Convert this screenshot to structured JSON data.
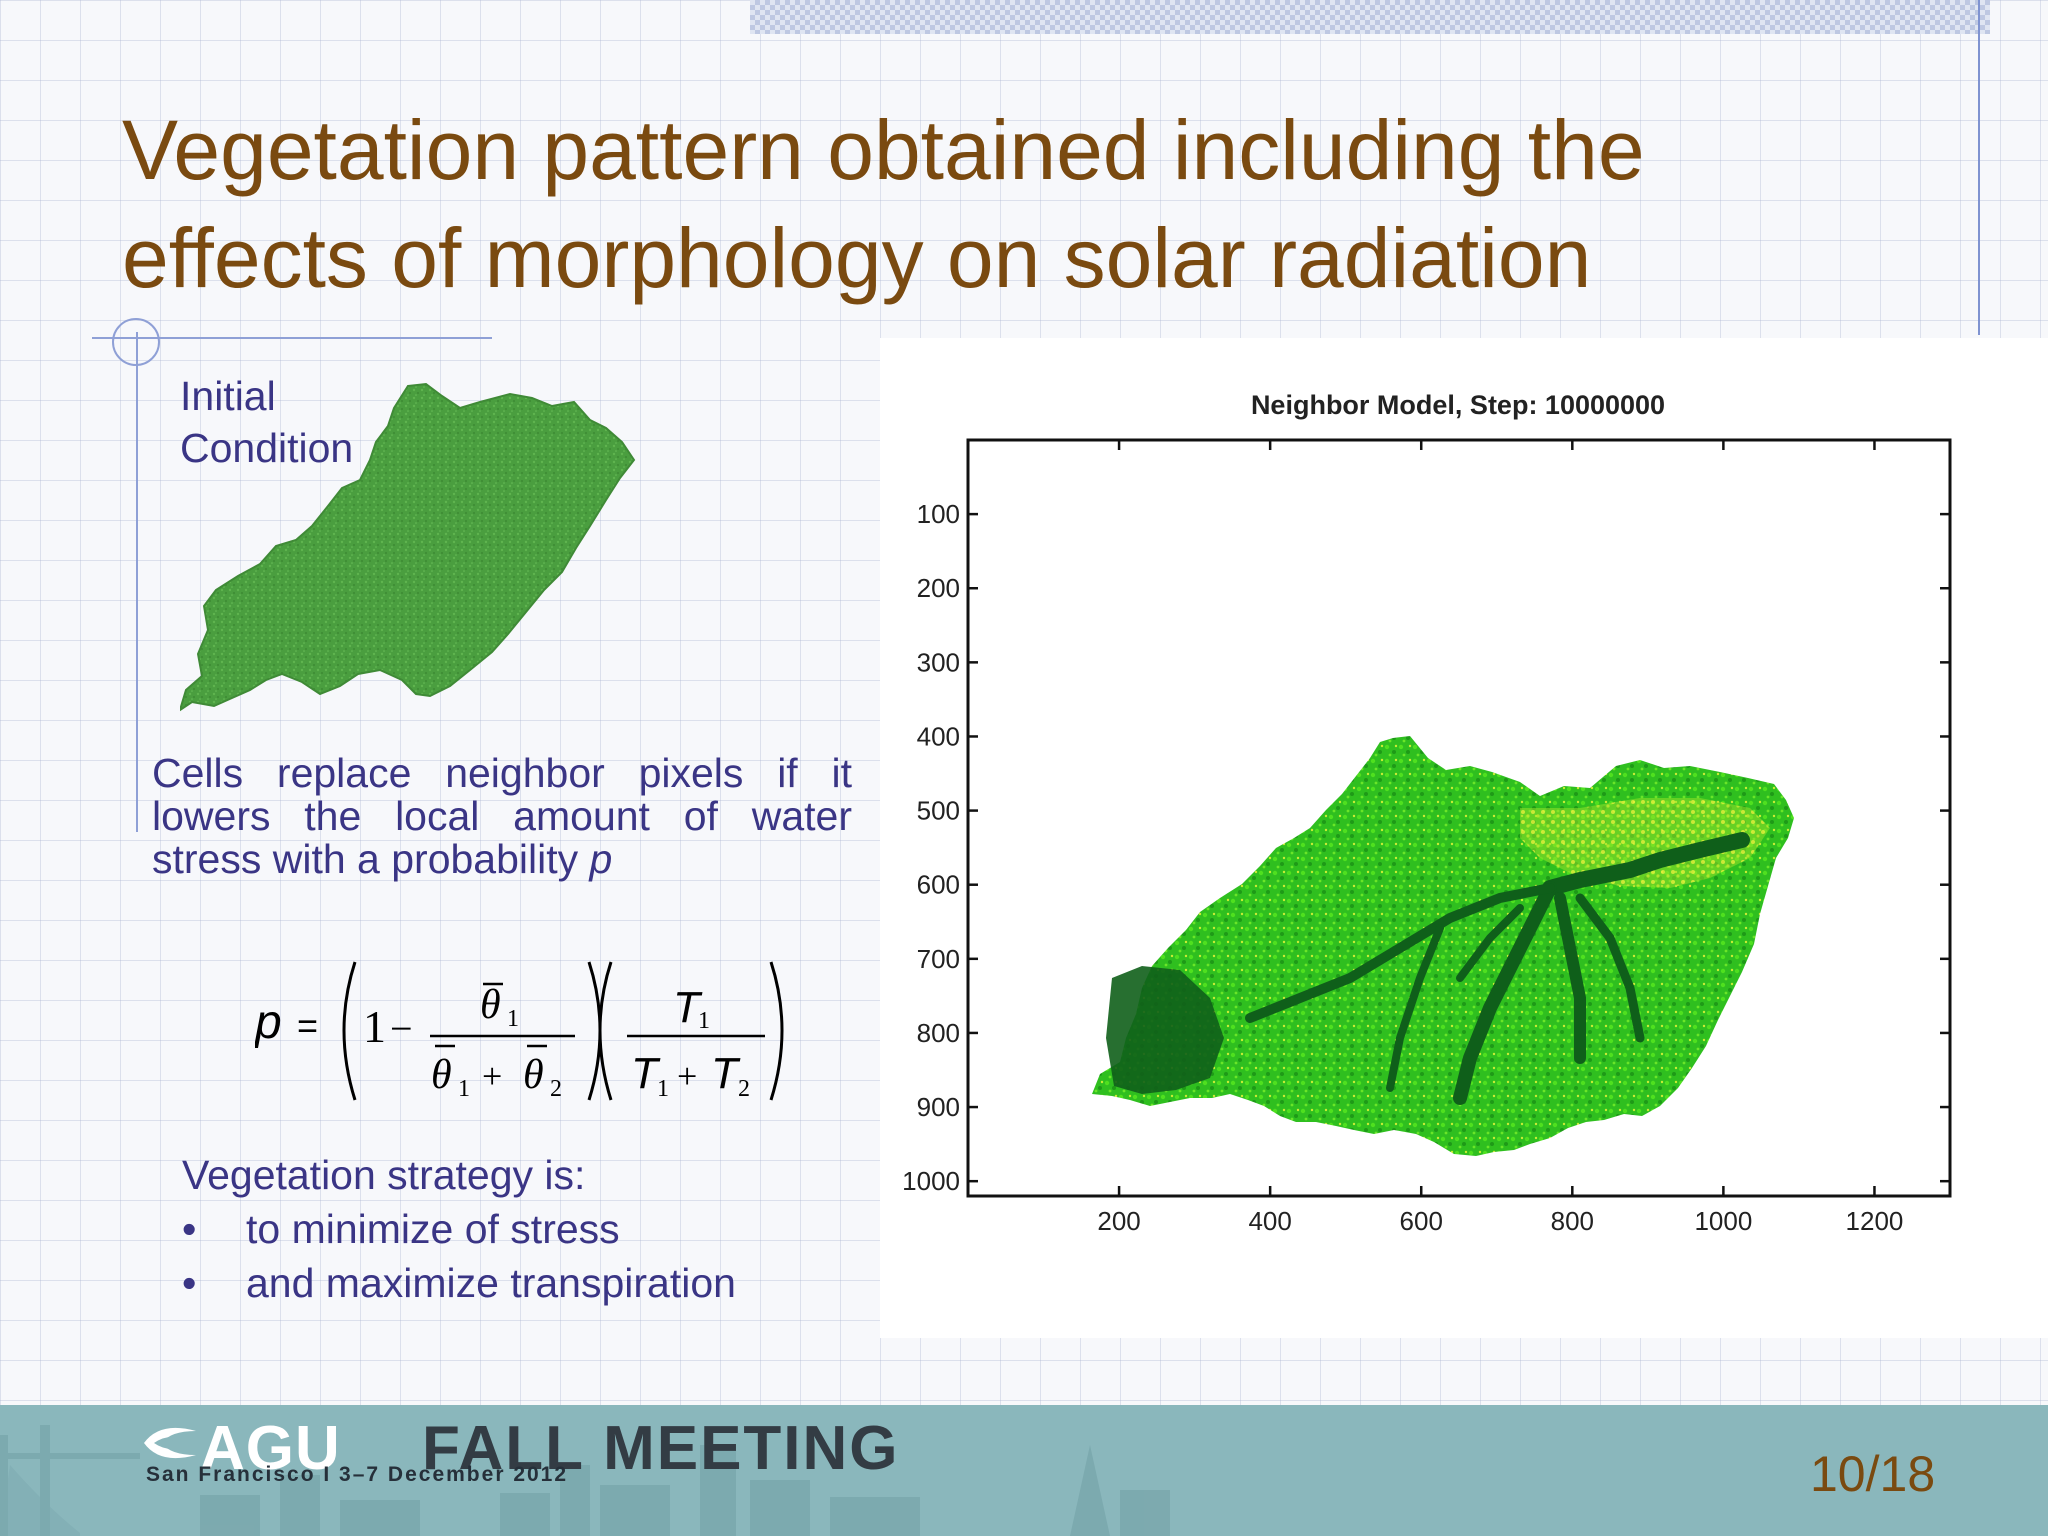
{
  "slide": {
    "title_line1": "Vegetation pattern obtained including the",
    "title_line2": "effects of morphology on solar radiation",
    "initial_label_line1": "Initial",
    "initial_label_line2": "Condition",
    "rule_text": "Cells replace neighbor pixels if it lowers the local amount of water stress with a probability",
    "rule_variable": "p",
    "formula": {
      "lhs": "p",
      "equals": "=",
      "one": "1",
      "minus": "−",
      "theta1": "θ",
      "sub1": "1",
      "theta2": "θ",
      "sub2": "2",
      "plus": "+",
      "T": "T"
    },
    "strategy_heading": "Vegetation strategy is:",
    "bullets": [
      "to minimize of stress",
      "and maximize transpiration"
    ],
    "bullet_glyph": "•"
  },
  "chart_data": {
    "type": "heatmap",
    "title": "Neighbor Model, Step: 10000000",
    "xlabel": "",
    "ylabel": "",
    "xlim": [
      0,
      1300
    ],
    "ylim": [
      1020,
      0
    ],
    "xticks": [
      200,
      400,
      600,
      800,
      1000,
      1200
    ],
    "yticks": [
      100,
      200,
      300,
      400,
      500,
      600,
      700,
      800,
      900,
      1000
    ],
    "colors": {
      "dense": "#0f5f1a",
      "medium": "#2fbf1f",
      "bright": "#4fe01f",
      "sparse": "#e6f03a"
    }
  },
  "footer": {
    "agu": "AGU",
    "fall_meeting": "FALL MEETING",
    "subline": "San Francisco  I  3–7 December 2012",
    "page_number": "10/18"
  },
  "theme": {
    "title_color": "#7a4a10",
    "text_color": "#3a3585",
    "footer_color": "#8ab7bc"
  }
}
